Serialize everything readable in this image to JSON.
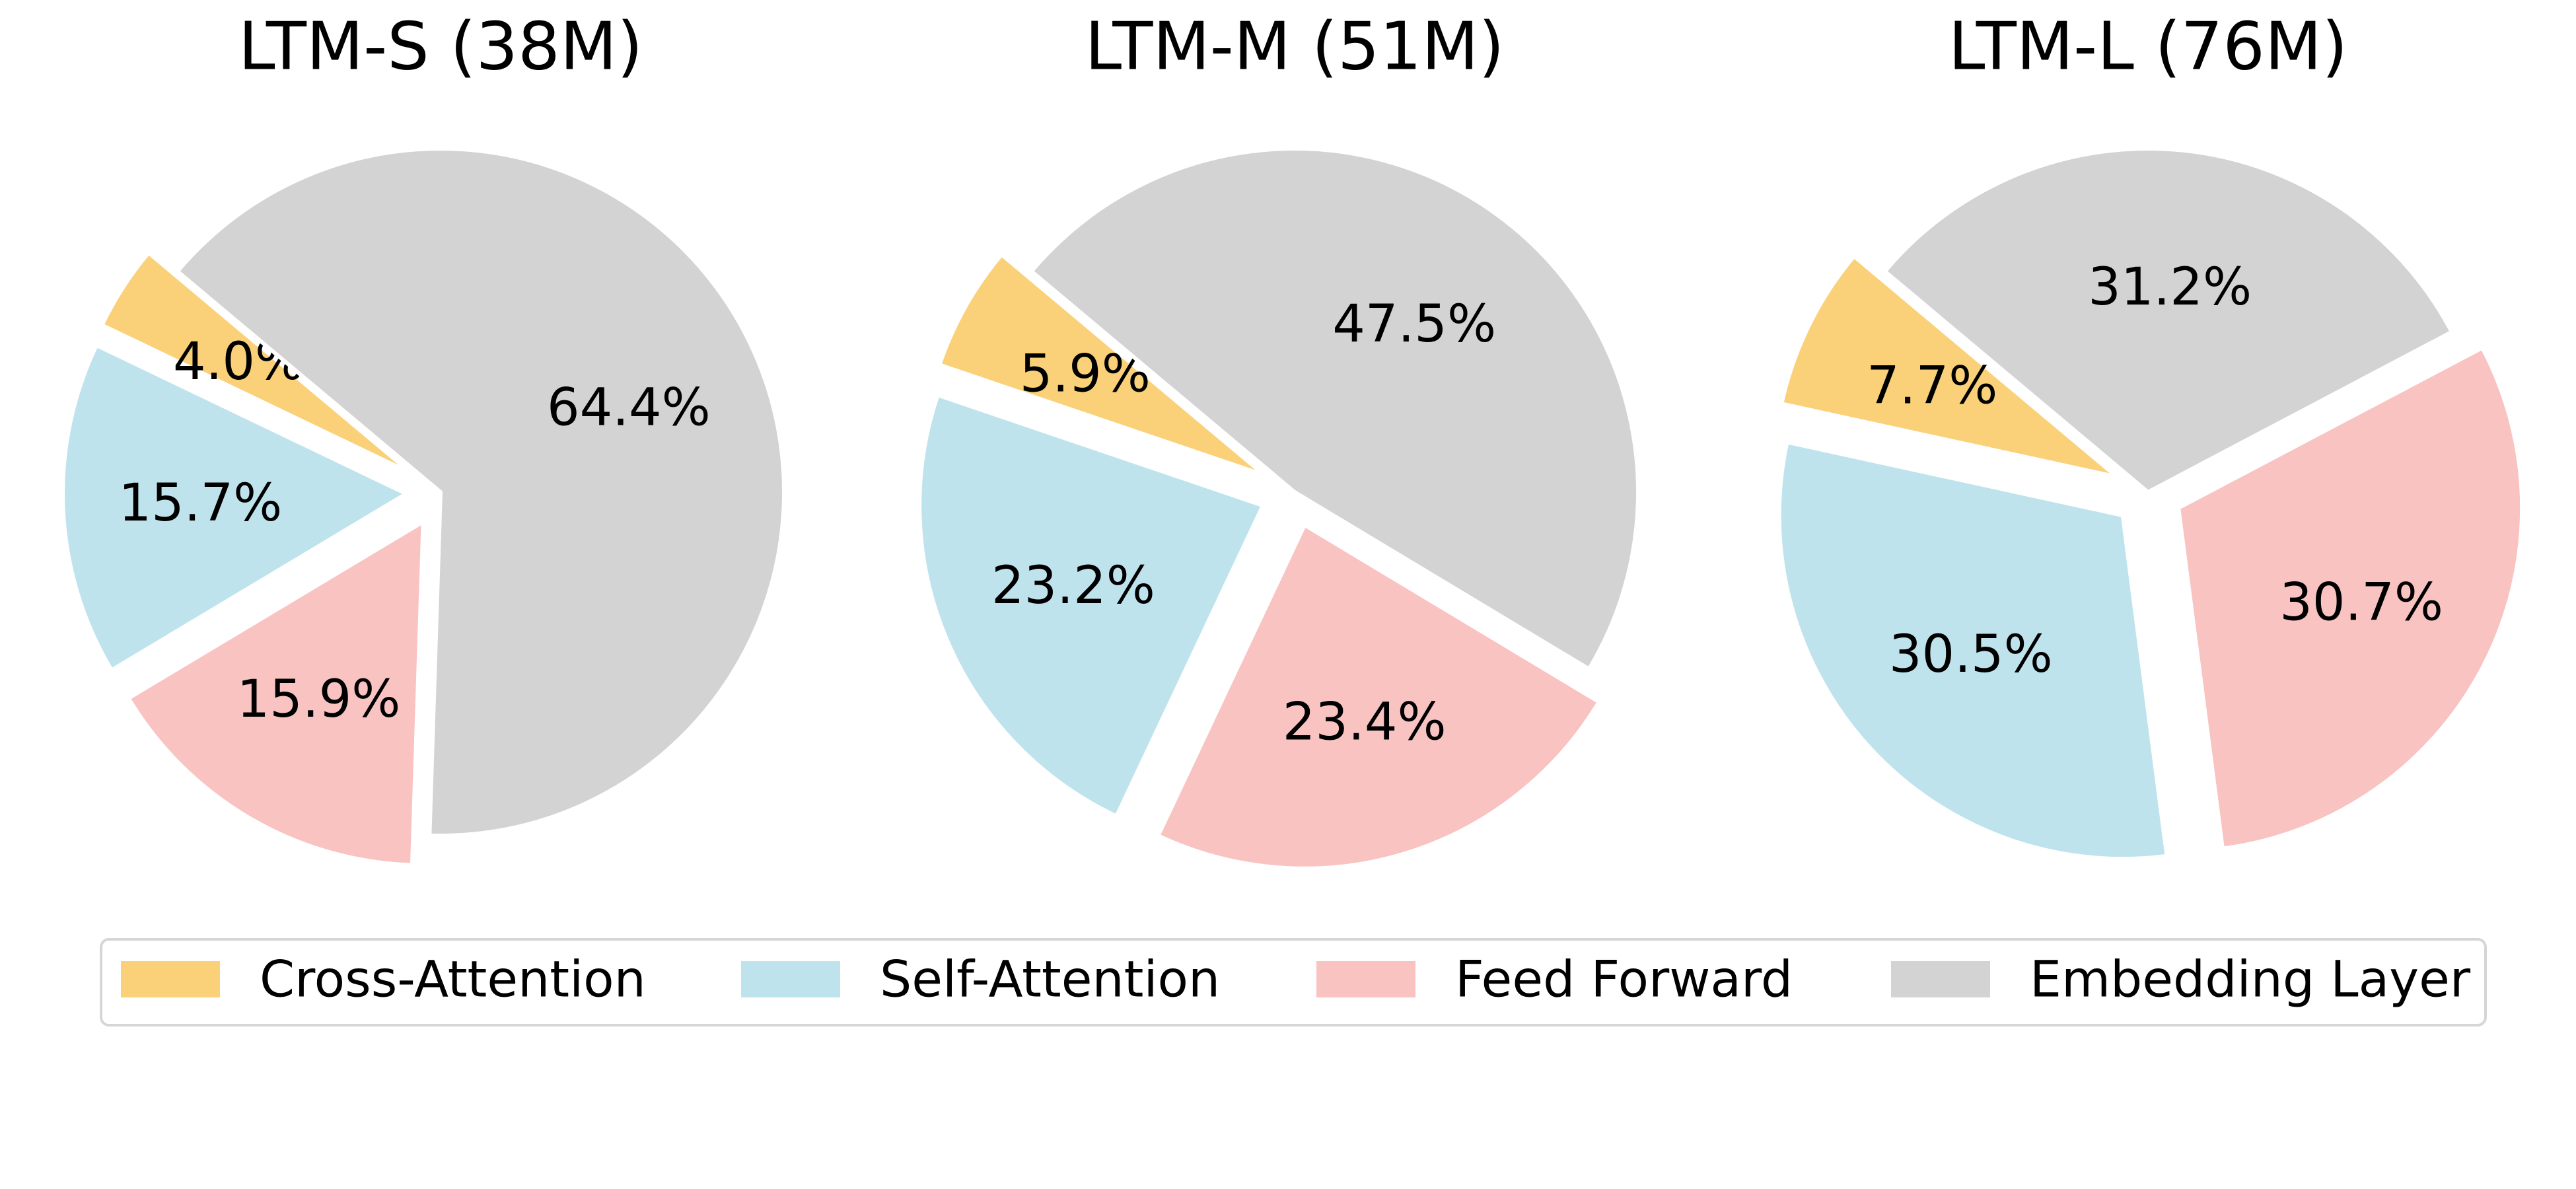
{
  "chart_data": [
    {
      "type": "pie",
      "title": "LTM-S (38M)",
      "categories": [
        "Cross-Attention",
        "Self-Attention",
        "Feed Forward",
        "Embedding Layer"
      ],
      "values": [
        4.0,
        15.7,
        15.9,
        64.4
      ],
      "labels": [
        "4.0%",
        "15.7%",
        "15.9%",
        "64.4%"
      ],
      "explode": [
        true,
        true,
        true,
        false
      ]
    },
    {
      "type": "pie",
      "title": "LTM-M (51M)",
      "categories": [
        "Cross-Attention",
        "Self-Attention",
        "Feed Forward",
        "Embedding Layer"
      ],
      "values": [
        5.9,
        23.2,
        23.4,
        47.5
      ],
      "labels": [
        "5.9%",
        "23.2%",
        "23.4%",
        "47.5%"
      ],
      "explode": [
        true,
        true,
        true,
        false
      ]
    },
    {
      "type": "pie",
      "title": "LTM-L (76M)",
      "categories": [
        "Cross-Attention",
        "Self-Attention",
        "Feed Forward",
        "Embedding Layer"
      ],
      "values": [
        7.7,
        30.5,
        30.7,
        31.2
      ],
      "labels": [
        "7.7%",
        "30.5%",
        "30.7%",
        "31.2%"
      ],
      "explode": [
        true,
        true,
        true,
        false
      ]
    }
  ],
  "legend": {
    "placement": "bottom-center",
    "items": [
      {
        "label": "Cross-Attention",
        "color": "#fad179"
      },
      {
        "label": "Self-Attention",
        "color": "#bfe3ec"
      },
      {
        "label": "Feed Forward",
        "color": "#f8c3c1"
      },
      {
        "label": "Embedding Layer",
        "color": "#d3d3d3"
      }
    ]
  },
  "colors": [
    "#fad179",
    "#bfe3ec",
    "#f8c3c1",
    "#d3d3d3"
  ]
}
